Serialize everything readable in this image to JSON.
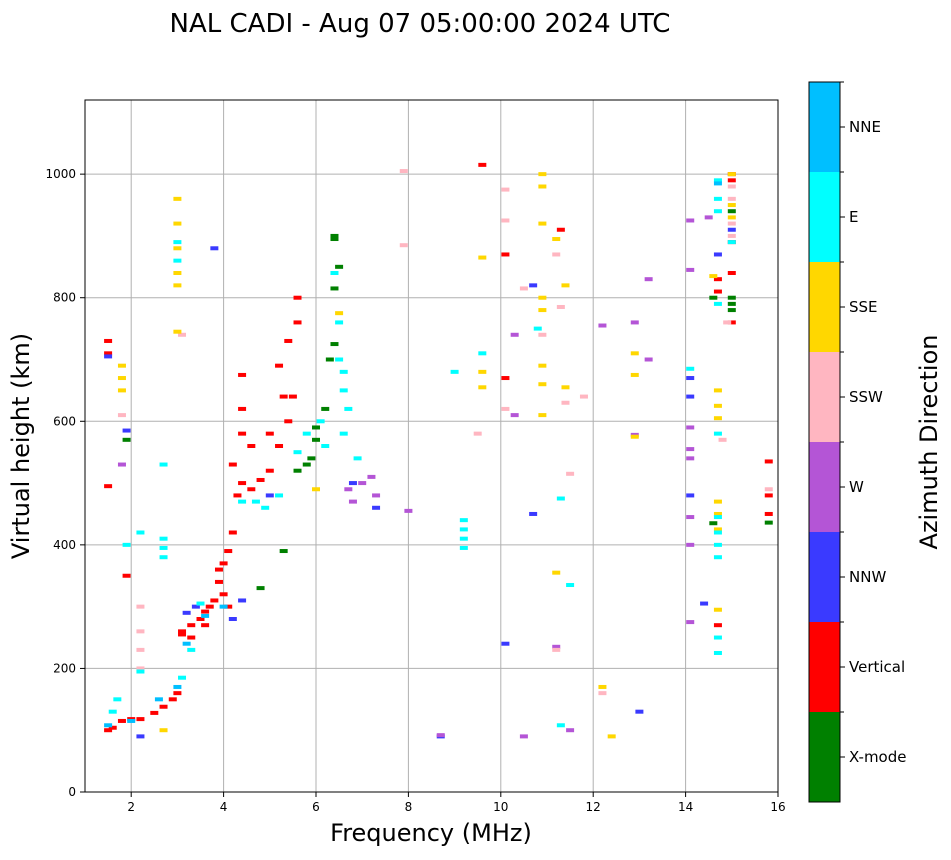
{
  "chart_data": {
    "type": "scatter",
    "title": "NAL CADI - Aug 07 05:00:00 2024 UTC",
    "xlabel": "Frequency (MHz)",
    "ylabel": "Virtual height (km)",
    "xlim": [
      1,
      16
    ],
    "ylim": [
      0,
      1120
    ],
    "xticks": [
      2,
      4,
      6,
      8,
      10,
      12,
      14,
      16
    ],
    "yticks": [
      0,
      200,
      400,
      600,
      800,
      1000
    ],
    "grid": true,
    "colorbar": {
      "label": "Azimuth Direction",
      "categories": [
        {
          "name": "X-mode",
          "color": "#008000"
        },
        {
          "name": "Vertical",
          "color": "#ff0000"
        },
        {
          "name": "NNW",
          "color": "#3a3aff"
        },
        {
          "name": "W",
          "color": "#b455d6"
        },
        {
          "name": "SSW",
          "color": "#ffb6c1"
        },
        {
          "name": "SSE",
          "color": "#ffd700"
        },
        {
          "name": "E",
          "color": "#00ffff"
        },
        {
          "name": "NNE",
          "color": "#00bfff"
        }
      ]
    },
    "series": [
      {
        "name": "Vertical",
        "points": [
          [
            1.5,
            100
          ],
          [
            1.6,
            104
          ],
          [
            1.8,
            115
          ],
          [
            2.0,
            118
          ],
          [
            2.2,
            118
          ],
          [
            2.5,
            128
          ],
          [
            2.7,
            138
          ],
          [
            2.9,
            150
          ],
          [
            3.0,
            160
          ],
          [
            3.1,
            255
          ],
          [
            3.3,
            270
          ],
          [
            3.5,
            280
          ],
          [
            3.6,
            292
          ],
          [
            3.7,
            300
          ],
          [
            3.8,
            310
          ],
          [
            3.9,
            340
          ],
          [
            4.0,
            370
          ],
          [
            4.1,
            390
          ],
          [
            4.2,
            420
          ],
          [
            4.3,
            480
          ],
          [
            4.4,
            500
          ],
          [
            4.6,
            490
          ],
          [
            4.8,
            505
          ],
          [
            5.0,
            520
          ],
          [
            5.2,
            560
          ],
          [
            5.4,
            600
          ],
          [
            5.5,
            640
          ],
          [
            4.2,
            530
          ],
          [
            4.4,
            580
          ],
          [
            4.6,
            560
          ],
          [
            5.0,
            580
          ],
          [
            5.2,
            690
          ],
          [
            5.4,
            730
          ],
          [
            5.6,
            760
          ],
          [
            1.5,
            495
          ],
          [
            1.5,
            710
          ],
          [
            1.5,
            730
          ],
          [
            1.9,
            350
          ],
          [
            3.1,
            260
          ],
          [
            3.3,
            250
          ],
          [
            3.6,
            270
          ],
          [
            3.9,
            360
          ],
          [
            4.0,
            320
          ],
          [
            4.1,
            300
          ],
          [
            4.4,
            620
          ],
          [
            4.4,
            675
          ],
          [
            5.3,
            640
          ],
          [
            5.6,
            800
          ],
          [
            9.6,
            1015
          ],
          [
            10.1,
            670
          ],
          [
            10.1,
            870
          ],
          [
            11.3,
            910
          ],
          [
            14.7,
            810
          ],
          [
            14.7,
            830
          ],
          [
            14.7,
            270
          ],
          [
            15.0,
            760
          ],
          [
            15.0,
            840
          ],
          [
            15.0,
            890
          ],
          [
            15.0,
            1000
          ],
          [
            15.0,
            990
          ],
          [
            15.8,
            535
          ],
          [
            15.8,
            480
          ],
          [
            15.8,
            450
          ]
        ]
      },
      {
        "name": "X-mode",
        "points": [
          [
            5.6,
            520
          ],
          [
            5.8,
            530
          ],
          [
            5.9,
            540
          ],
          [
            6.0,
            570
          ],
          [
            6.0,
            590
          ],
          [
            6.2,
            620
          ],
          [
            6.3,
            700
          ],
          [
            6.4,
            725
          ],
          [
            6.4,
            815
          ],
          [
            6.5,
            850
          ],
          [
            6.4,
            895
          ],
          [
            6.4,
            900
          ],
          [
            5.3,
            390
          ],
          [
            4.8,
            330
          ],
          [
            1.9,
            570
          ],
          [
            14.6,
            435
          ],
          [
            14.6,
            800
          ],
          [
            15.0,
            780
          ],
          [
            15.0,
            790
          ],
          [
            15.0,
            800
          ],
          [
            15.0,
            940
          ],
          [
            15.8,
            436
          ]
        ]
      },
      {
        "name": "NNW",
        "points": [
          [
            1.5,
            705
          ],
          [
            1.9,
            585
          ],
          [
            2.2,
            90
          ],
          [
            3.2,
            290
          ],
          [
            3.4,
            300
          ],
          [
            3.8,
            880
          ],
          [
            4.2,
            280
          ],
          [
            4.4,
            310
          ],
          [
            5.0,
            480
          ],
          [
            6.8,
            500
          ],
          [
            7.3,
            460
          ],
          [
            8.7,
            90
          ],
          [
            10.1,
            240
          ],
          [
            10.7,
            450
          ],
          [
            10.7,
            820
          ],
          [
            13.0,
            130
          ],
          [
            14.1,
            670
          ],
          [
            14.1,
            640
          ],
          [
            14.1,
            480
          ],
          [
            14.4,
            305
          ],
          [
            14.7,
            870
          ],
          [
            15.0,
            910
          ]
        ]
      },
      {
        "name": "W",
        "points": [
          [
            1.8,
            530
          ],
          [
            6.7,
            490
          ],
          [
            6.8,
            470
          ],
          [
            7.0,
            500
          ],
          [
            7.3,
            480
          ],
          [
            7.2,
            510
          ],
          [
            8.0,
            455
          ],
          [
            8.7,
            92
          ],
          [
            10.3,
            740
          ],
          [
            10.3,
            610
          ],
          [
            10.5,
            90
          ],
          [
            11.2,
            235
          ],
          [
            11.5,
            100
          ],
          [
            12.2,
            755
          ],
          [
            12.9,
            760
          ],
          [
            12.9,
            578
          ],
          [
            13.2,
            830
          ],
          [
            13.2,
            700
          ],
          [
            14.1,
            925
          ],
          [
            14.1,
            845
          ],
          [
            14.1,
            590
          ],
          [
            14.1,
            555
          ],
          [
            14.1,
            540
          ],
          [
            14.1,
            445
          ],
          [
            14.1,
            400
          ],
          [
            14.1,
            275
          ],
          [
            14.5,
            930
          ]
        ]
      },
      {
        "name": "SSW",
        "points": [
          [
            1.8,
            610
          ],
          [
            2.2,
            300
          ],
          [
            2.2,
            260
          ],
          [
            2.2,
            230
          ],
          [
            2.2,
            200
          ],
          [
            3.1,
            740
          ],
          [
            7.9,
            1005
          ],
          [
            7.9,
            885
          ],
          [
            9.5,
            580
          ],
          [
            10.1,
            975
          ],
          [
            10.1,
            925
          ],
          [
            10.1,
            620
          ],
          [
            10.5,
            815
          ],
          [
            10.9,
            740
          ],
          [
            11.2,
            870
          ],
          [
            11.2,
            230
          ],
          [
            11.3,
            785
          ],
          [
            11.4,
            630
          ],
          [
            11.5,
            515
          ],
          [
            11.8,
            640
          ],
          [
            12.2,
            160
          ],
          [
            14.8,
            570
          ],
          [
            14.9,
            760
          ],
          [
            15.0,
            980
          ],
          [
            15.0,
            960
          ],
          [
            15.0,
            920
          ],
          [
            15.0,
            900
          ],
          [
            15.8,
            490
          ]
        ]
      },
      {
        "name": "SSE",
        "points": [
          [
            1.8,
            690
          ],
          [
            1.8,
            670
          ],
          [
            1.8,
            650
          ],
          [
            3.0,
            960
          ],
          [
            3.0,
            920
          ],
          [
            3.0,
            880
          ],
          [
            3.0,
            840
          ],
          [
            3.0,
            820
          ],
          [
            3.0,
            745
          ],
          [
            6.5,
            775
          ],
          [
            6.0,
            490
          ],
          [
            2.7,
            100
          ],
          [
            9.6,
            865
          ],
          [
            9.6,
            680
          ],
          [
            9.6,
            655
          ],
          [
            10.9,
            1000
          ],
          [
            10.9,
            980
          ],
          [
            10.9,
            920
          ],
          [
            10.9,
            800
          ],
          [
            10.9,
            780
          ],
          [
            10.9,
            690
          ],
          [
            10.9,
            660
          ],
          [
            10.9,
            610
          ],
          [
            11.2,
            895
          ],
          [
            11.2,
            355
          ],
          [
            11.4,
            820
          ],
          [
            11.4,
            655
          ],
          [
            12.2,
            170
          ],
          [
            12.4,
            90
          ],
          [
            12.9,
            710
          ],
          [
            12.9,
            675
          ],
          [
            12.9,
            575
          ],
          [
            14.6,
            835
          ],
          [
            14.7,
            650
          ],
          [
            14.7,
            625
          ],
          [
            14.7,
            605
          ],
          [
            14.7,
            470
          ],
          [
            14.7,
            450
          ],
          [
            14.7,
            425
          ],
          [
            14.7,
            295
          ],
          [
            15.0,
            1000
          ],
          [
            15.0,
            950
          ],
          [
            15.0,
            930
          ]
        ]
      },
      {
        "name": "E",
        "points": [
          [
            1.6,
            130
          ],
          [
            1.7,
            150
          ],
          [
            1.9,
            400
          ],
          [
            2.2,
            420
          ],
          [
            2.2,
            195
          ],
          [
            2.7,
            410
          ],
          [
            2.7,
            395
          ],
          [
            2.7,
            380
          ],
          [
            2.7,
            530
          ],
          [
            3.0,
            890
          ],
          [
            3.0,
            860
          ],
          [
            3.1,
            185
          ],
          [
            3.3,
            230
          ],
          [
            3.5,
            305
          ],
          [
            4.4,
            470
          ],
          [
            4.7,
            470
          ],
          [
            4.9,
            460
          ],
          [
            5.2,
            480
          ],
          [
            5.6,
            550
          ],
          [
            5.8,
            580
          ],
          [
            6.1,
            600
          ],
          [
            6.4,
            840
          ],
          [
            6.5,
            760
          ],
          [
            6.5,
            700
          ],
          [
            6.6,
            680
          ],
          [
            6.6,
            650
          ],
          [
            6.7,
            620
          ],
          [
            6.6,
            580
          ],
          [
            6.2,
            560
          ],
          [
            6.9,
            540
          ],
          [
            9.0,
            680
          ],
          [
            9.2,
            440
          ],
          [
            9.2,
            425
          ],
          [
            9.2,
            410
          ],
          [
            9.2,
            395
          ],
          [
            9.6,
            710
          ],
          [
            10.8,
            750
          ],
          [
            11.3,
            475
          ],
          [
            11.3,
            108
          ],
          [
            11.5,
            335
          ],
          [
            14.1,
            685
          ],
          [
            14.7,
            990
          ],
          [
            14.7,
            960
          ],
          [
            14.7,
            940
          ],
          [
            14.7,
            790
          ],
          [
            14.7,
            580
          ],
          [
            14.7,
            445
          ],
          [
            14.7,
            420
          ],
          [
            14.7,
            400
          ],
          [
            14.7,
            380
          ],
          [
            14.7,
            250
          ],
          [
            14.7,
            225
          ],
          [
            15.0,
            890
          ]
        ]
      },
      {
        "name": "NNE",
        "points": [
          [
            1.5,
            108
          ],
          [
            2.0,
            115
          ],
          [
            2.6,
            150
          ],
          [
            3.0,
            170
          ],
          [
            3.2,
            240
          ],
          [
            3.6,
            285
          ],
          [
            4.0,
            300
          ],
          [
            14.7,
            985
          ]
        ]
      }
    ]
  }
}
